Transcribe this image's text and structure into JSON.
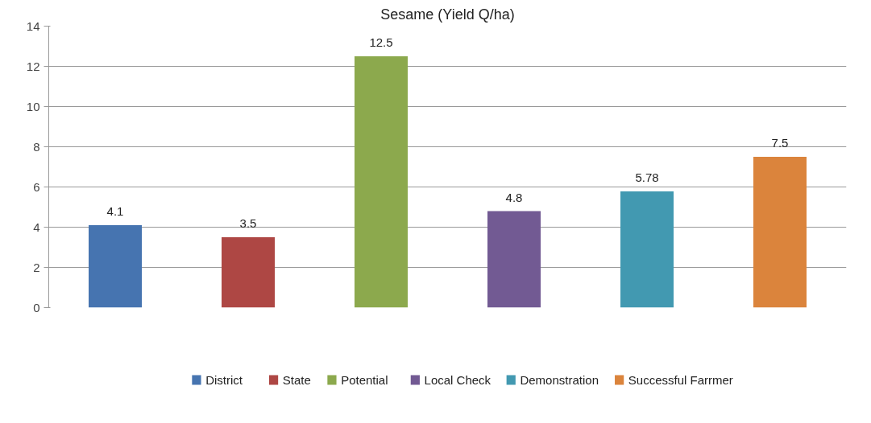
{
  "chart_data": {
    "type": "bar",
    "title": "Sesame (Yield Q/ha)",
    "categories": [
      null
    ],
    "series": [
      {
        "name": "District",
        "color": "#4674b0",
        "values": [
          4.1
        ]
      },
      {
        "name": "State",
        "color": "#ae4744",
        "values": [
          3.5
        ]
      },
      {
        "name": "Potential",
        "color": "#8ca94d",
        "values": [
          12.5
        ]
      },
      {
        "name": "Local Check",
        "color": "#725a93",
        "values": [
          4.8
        ]
      },
      {
        "name": "Demonstration",
        "color": "#4299b1",
        "values": [
          5.78
        ]
      },
      {
        "name": "Successful Farrmer",
        "color": "#db843c",
        "values": [
          7.5
        ]
      }
    ],
    "ylim": [
      0,
      14
    ],
    "yticks": [
      0,
      2,
      4,
      6,
      8,
      10,
      12,
      14
    ],
    "grid": "y",
    "legend": "bottom",
    "data_labels": true
  }
}
